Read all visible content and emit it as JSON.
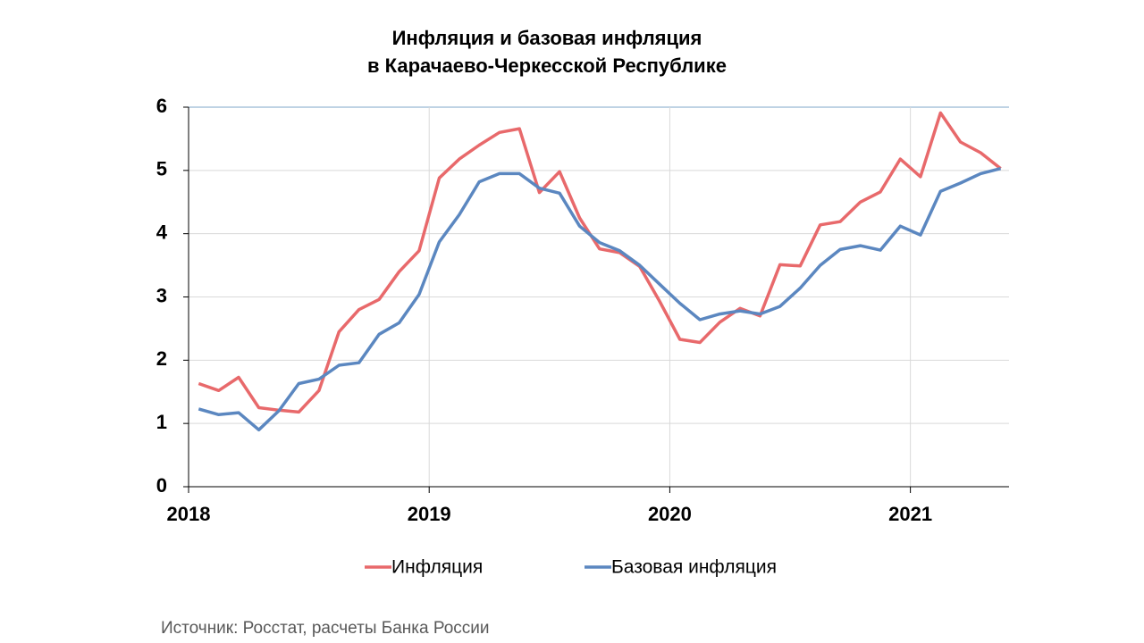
{
  "chart_data": {
    "type": "line",
    "title": [
      "Инфляция и базовая инфляция",
      "в Карачаево-Черкесской Республике"
    ],
    "source": "Источник: Росстат, расчеты Банка России",
    "x": [
      2018.042,
      2018.125,
      2018.208,
      2018.292,
      2018.375,
      2018.458,
      2018.542,
      2018.625,
      2018.708,
      2018.792,
      2018.875,
      2018.958,
      2019.042,
      2019.125,
      2019.208,
      2019.292,
      2019.375,
      2019.458,
      2019.542,
      2019.625,
      2019.708,
      2019.792,
      2019.875,
      2019.958,
      2020.042,
      2020.125,
      2020.208,
      2020.292,
      2020.375,
      2020.458,
      2020.542,
      2020.625,
      2020.708,
      2020.792,
      2020.875,
      2020.958,
      2021.042,
      2021.125,
      2021.208,
      2021.292,
      2021.375
    ],
    "series": [
      {
        "name": "Инфляция",
        "color": "#e8696b",
        "values": [
          1.63,
          1.52,
          1.73,
          1.25,
          1.21,
          1.18,
          1.52,
          2.45,
          2.8,
          2.96,
          3.4,
          3.73,
          4.88,
          5.18,
          5.4,
          5.6,
          5.66,
          4.65,
          4.98,
          4.25,
          3.76,
          3.7,
          3.48,
          2.93,
          2.33,
          2.28,
          2.6,
          2.82,
          2.7,
          3.51,
          3.49,
          4.14,
          4.19,
          4.5,
          4.66,
          5.18,
          4.9,
          5.91,
          5.45,
          5.28,
          5.03
        ]
      },
      {
        "name": "Базовая инфляция",
        "color": "#5b87c0",
        "values": [
          1.23,
          1.14,
          1.17,
          0.9,
          1.2,
          1.63,
          1.7,
          1.92,
          1.96,
          2.41,
          2.59,
          3.04,
          3.87,
          4.3,
          4.82,
          4.95,
          4.95,
          4.72,
          4.64,
          4.12,
          3.86,
          3.73,
          3.5,
          3.2,
          2.9,
          2.64,
          2.73,
          2.78,
          2.73,
          2.85,
          3.14,
          3.5,
          3.75,
          3.81,
          3.74,
          4.12,
          3.98,
          4.67,
          4.8,
          4.95,
          5.03
        ]
      }
    ],
    "xlim": [
      2018,
      2021.41
    ],
    "xticks": [
      2018,
      2019,
      2020,
      2021
    ],
    "ylim": [
      0,
      6
    ],
    "yticks": [
      0,
      1,
      2,
      3,
      4,
      5,
      6
    ],
    "grid": true,
    "legend": "bottom"
  }
}
